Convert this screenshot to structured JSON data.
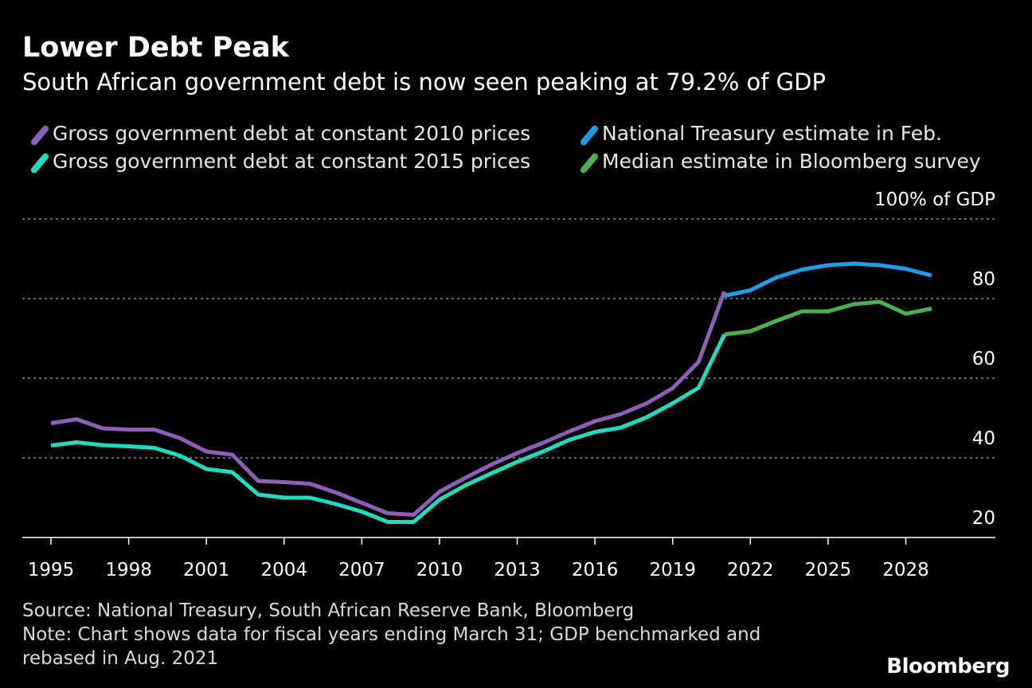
{
  "header": {
    "title": "Lower Debt Peak",
    "subtitle": "South African government debt is now seen peaking at 79.2% of GDP"
  },
  "footer": {
    "source": "Source: National Treasury, South African Reserve Bank, Bloomberg",
    "note_line1": "Note: Chart shows data for fiscal years ending March 31; GDP benchmarked and",
    "note_line2": "rebased in Aug. 2021",
    "brand": "Bloomberg"
  },
  "chart_data": {
    "type": "line",
    "ylabel": "100% of GDP",
    "y_ticks": [
      20,
      40,
      60,
      80,
      100
    ],
    "y_tick_labels": [
      "20",
      "40",
      "60",
      "80",
      "100% of GDP"
    ],
    "ylim": [
      20,
      100
    ],
    "x_ticks": [
      1995,
      1998,
      2001,
      2004,
      2007,
      2010,
      2013,
      2016,
      2019,
      2022,
      2025,
      2028
    ],
    "xlim": [
      1994.0,
      2031.5
    ],
    "grid": true,
    "legend_position": "top",
    "series": [
      {
        "name": "Gross government debt at constant 2010 prices",
        "color": "#8e5fb8",
        "x": [
          1995,
          1996,
          1997,
          1998,
          1999,
          2000,
          2001,
          2002,
          2003,
          2004,
          2005,
          2006,
          2007,
          2008,
          2009,
          2010,
          2011,
          2012,
          2013,
          2014,
          2015,
          2016,
          2017,
          2018,
          2019,
          2020,
          2021
        ],
        "y": [
          48.7,
          49.7,
          47.4,
          47.1,
          47.1,
          44.9,
          41.6,
          40.8,
          34.2,
          33.9,
          33.5,
          31.3,
          28.7,
          26.1,
          25.7,
          31.5,
          35.0,
          38.3,
          41.2,
          43.8,
          46.6,
          49.2,
          51.0,
          53.7,
          57.5,
          64.1,
          81.8
        ]
      },
      {
        "name": "Gross government debt at constant 2015 prices",
        "color": "#1fdcbf",
        "x": [
          1995,
          1996,
          1997,
          1998,
          1999,
          2000,
          2001,
          2002,
          2003,
          2004,
          2005,
          2006,
          2007,
          2008,
          2009,
          2010,
          2011,
          2012,
          2013,
          2014,
          2015,
          2016,
          2017,
          2018,
          2019,
          2020,
          2021
        ],
        "y": [
          43.1,
          43.9,
          43.2,
          42.9,
          42.5,
          40.5,
          37.2,
          36.4,
          30.8,
          30.0,
          30.0,
          28.4,
          26.5,
          23.9,
          23.9,
          29.5,
          33.1,
          36.1,
          39.0,
          41.6,
          44.5,
          46.5,
          47.6,
          50.2,
          53.7,
          57.6,
          71.0
        ]
      },
      {
        "name": "National Treasury estimate in Feb.",
        "color": "#1d9ee6",
        "x": [
          2021,
          2022,
          2023,
          2024,
          2025,
          2026,
          2027,
          2028,
          2029
        ],
        "y": [
          80.7,
          82.1,
          85.3,
          87.3,
          88.4,
          88.8,
          88.4,
          87.5,
          85.8
        ]
      },
      {
        "name": "Median estimate in Bloomberg survey",
        "color": "#4caf50",
        "x": [
          2021,
          2022,
          2023,
          2024,
          2025,
          2026,
          2027,
          2028,
          2029
        ],
        "y": [
          71.0,
          71.8,
          74.4,
          76.8,
          76.8,
          78.6,
          79.2,
          76.2,
          77.5
        ]
      }
    ]
  }
}
